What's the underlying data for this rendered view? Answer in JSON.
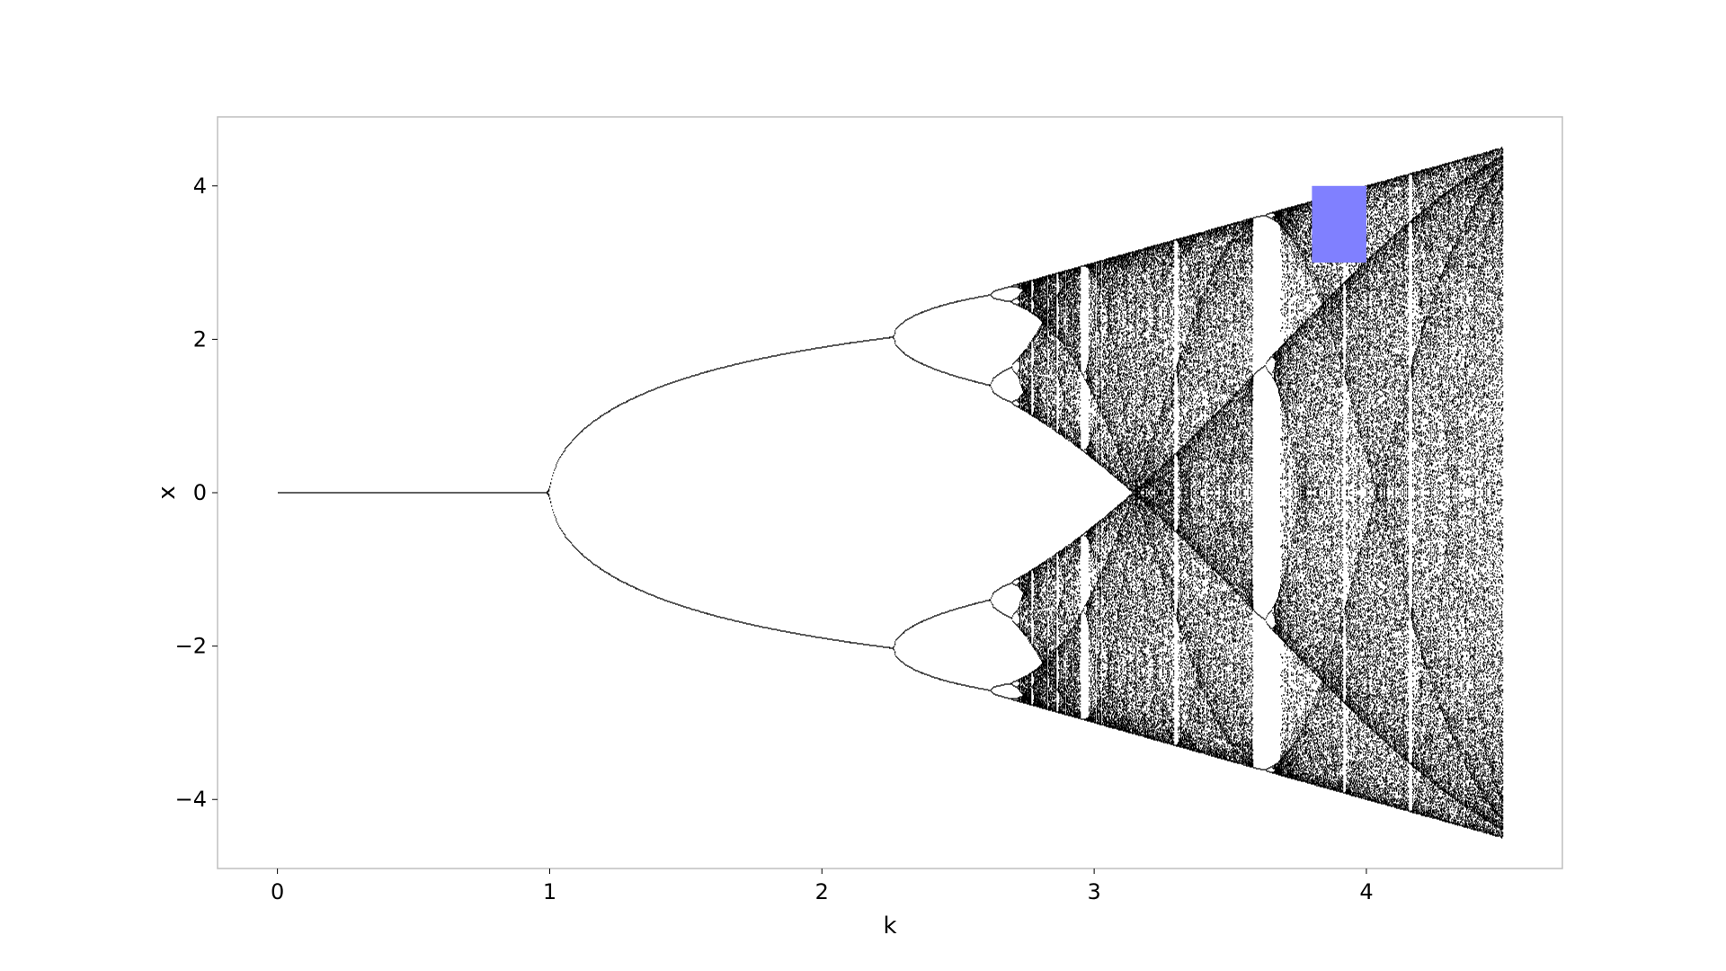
{
  "chart_data": {
    "type": "scatter",
    "title": "",
    "xlabel": "k",
    "ylabel": "x",
    "xlim": [
      -0.22,
      4.72
    ],
    "ylim": [
      -4.9,
      4.9
    ],
    "xticks": [
      0,
      1,
      2,
      3,
      4
    ],
    "xtick_labels": [
      "0",
      "1",
      "2",
      "3",
      "4"
    ],
    "yticks": [
      -4,
      -2,
      0,
      2,
      4
    ],
    "ytick_labels": [
      "−4",
      "−2",
      "0",
      "2",
      "4"
    ],
    "grid": false,
    "point_color": "#000000",
    "highlight": {
      "x_range": [
        3.8,
        4.0
      ],
      "y_range": [
        3.0,
        4.0
      ],
      "color": "#8080ff"
    },
    "series": [
      {
        "description": "bifurcation diagram: attractor values of x for each k",
        "k_range": [
          0,
          4.5
        ],
        "fixed_point_until": 1.0,
        "chaotic_bands": [
          {
            "k": [
              1.78,
              2.38
            ],
            "x": [
              -2.2,
              2.2
            ]
          },
          {
            "k": [
              2.9,
              3.62
            ],
            "x": [
              -3.55,
              3.55
            ]
          },
          {
            "k": [
              3.85,
              4.5
            ],
            "x": [
              -4.5,
              4.5
            ]
          }
        ]
      }
    ]
  }
}
